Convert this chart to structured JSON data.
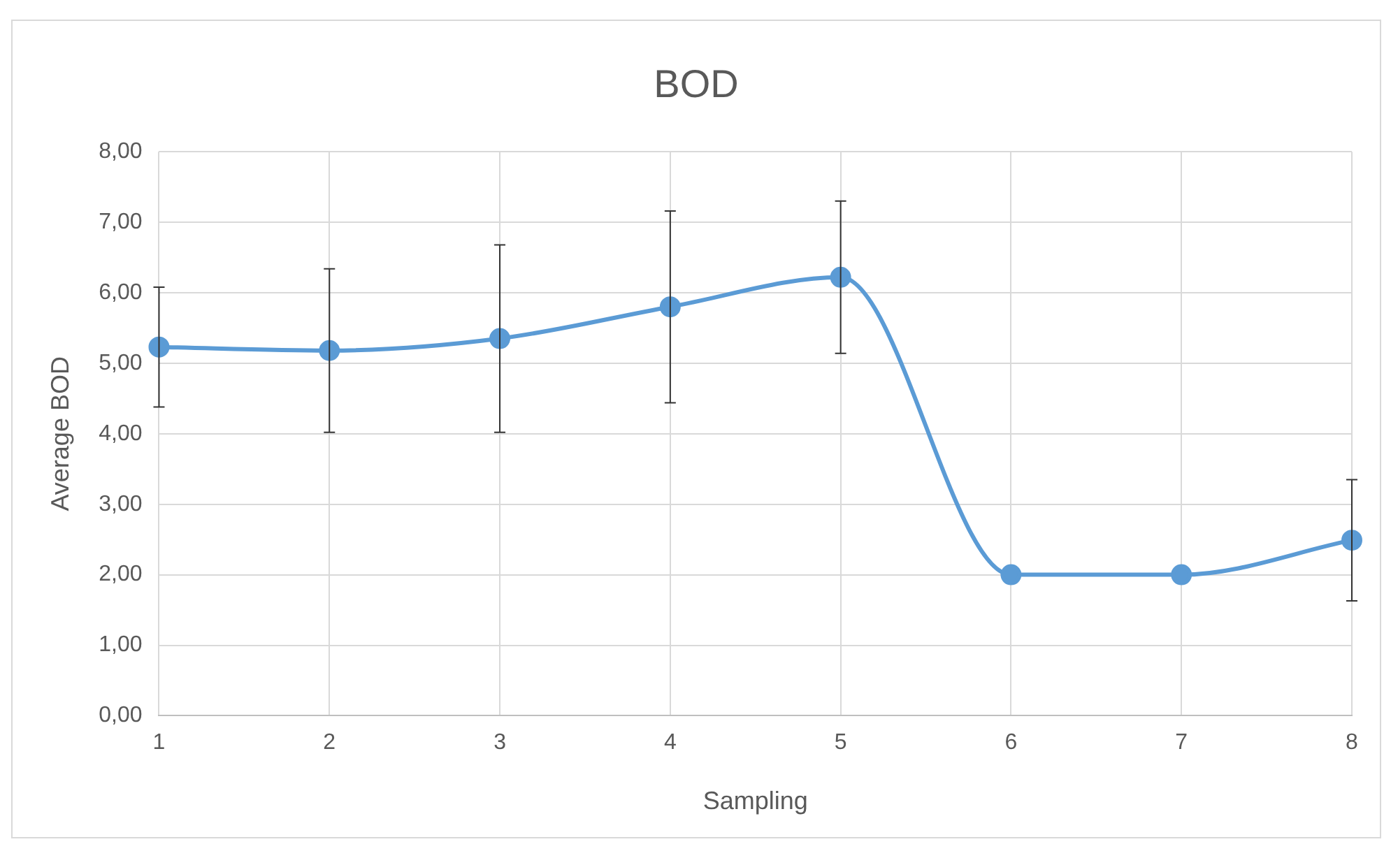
{
  "chart_data": {
    "type": "line",
    "title": "BOD",
    "xlabel": "Sampling",
    "ylabel": "Average BOD",
    "categories": [
      "1",
      "2",
      "3",
      "4",
      "5",
      "6",
      "7",
      "8"
    ],
    "series": [
      {
        "color": "#5b9bd5",
        "values": [
          5.23,
          5.18,
          5.35,
          5.8,
          6.22,
          2.0,
          2.0,
          2.49
        ],
        "errors": [
          0.85,
          1.16,
          1.33,
          1.36,
          1.08,
          null,
          null,
          0.86
        ]
      }
    ],
    "ylim": [
      0,
      8
    ],
    "yticks": [
      {
        "value": 0,
        "label": "0,00"
      },
      {
        "value": 1,
        "label": "1,00"
      },
      {
        "value": 2,
        "label": "2,00"
      },
      {
        "value": 3,
        "label": "3,00"
      },
      {
        "value": 4,
        "label": "4,00"
      },
      {
        "value": 5,
        "label": "5,00"
      },
      {
        "value": 6,
        "label": "6,00"
      },
      {
        "value": 7,
        "label": "7,00"
      },
      {
        "value": 8,
        "label": "8,00"
      }
    ],
    "grid": true,
    "legend": false,
    "marker": "circle",
    "line_style": "solid"
  }
}
